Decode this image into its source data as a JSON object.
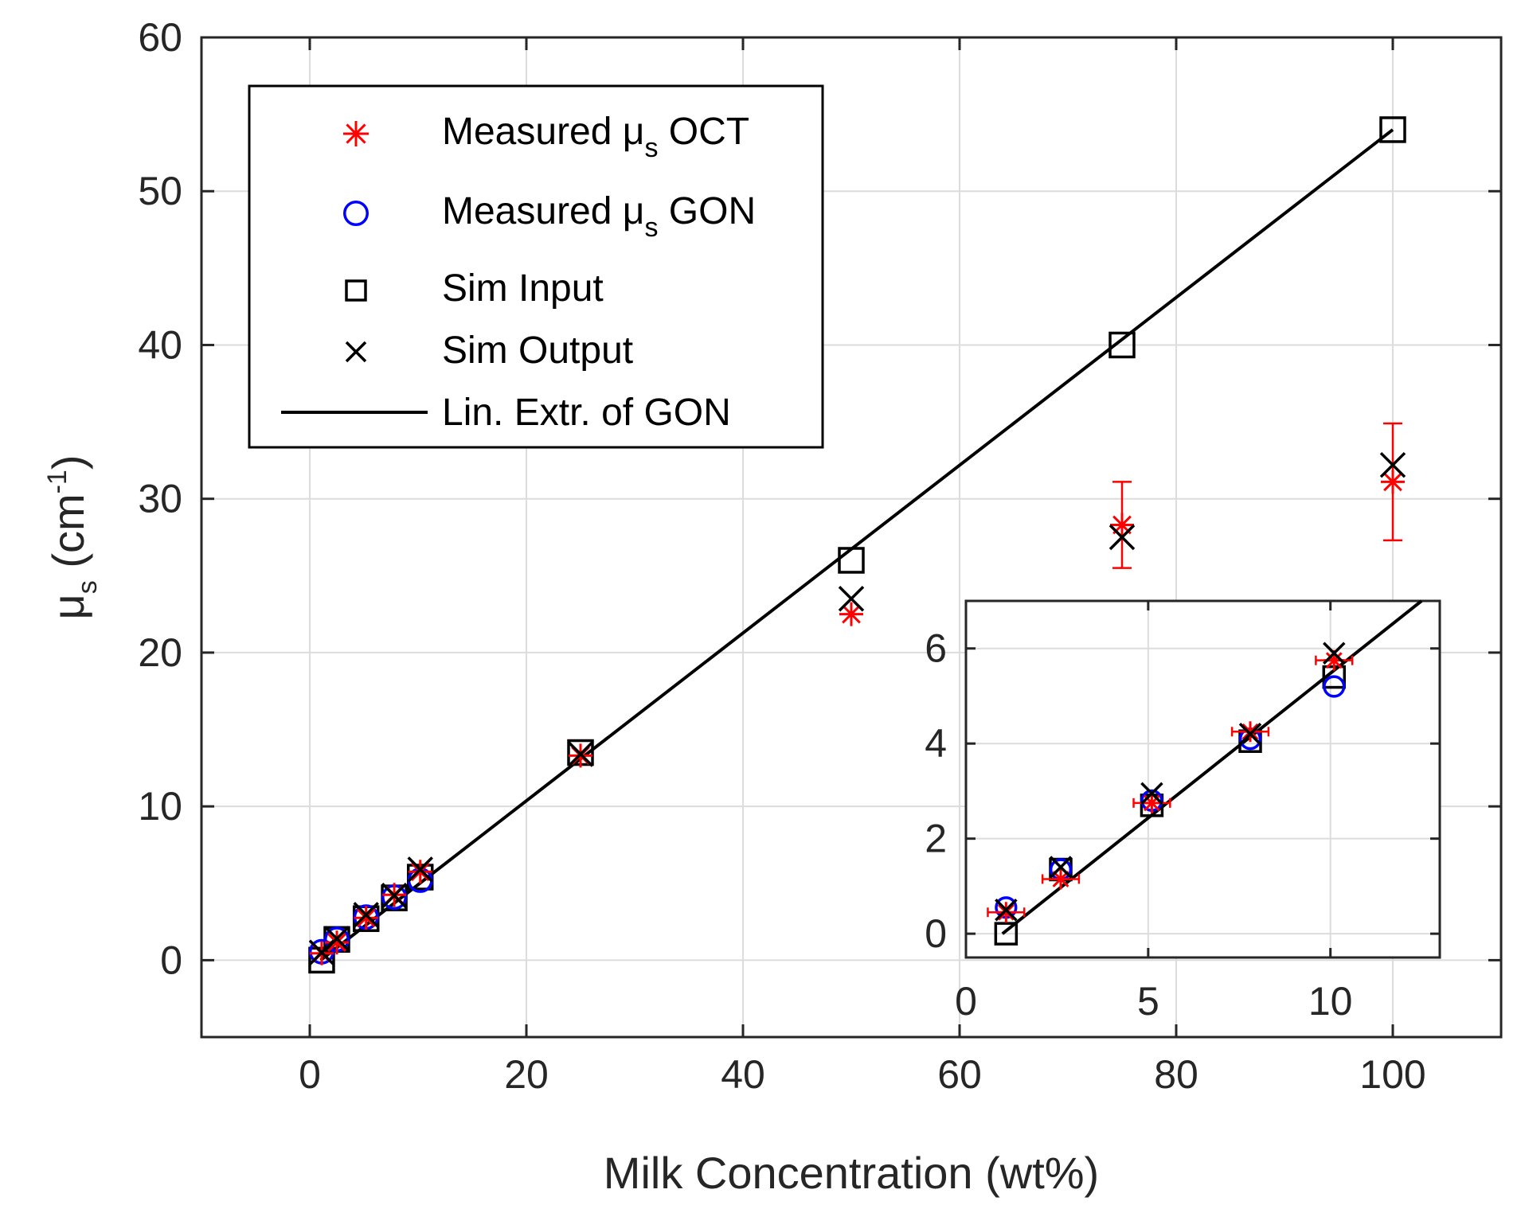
{
  "chart_data": [
    {
      "type": "scatter",
      "role": "main",
      "xlabel": "Milk Concentration (wt%)",
      "ylabel": {
        "base": "μ",
        "sub": "s",
        "unit_open": " (cm",
        "unit_sup": "-1",
        "unit_close": ")"
      },
      "xlim": [
        -10,
        110
      ],
      "ylim": [
        -5,
        60
      ],
      "xticks": [
        "0",
        "20",
        "40",
        "60",
        "80",
        "100"
      ],
      "xtick_values": [
        0,
        20,
        40,
        60,
        80,
        100
      ],
      "yticks": [
        "0",
        "10",
        "20",
        "30",
        "40",
        "50",
        "60"
      ],
      "ytick_values": [
        0,
        10,
        20,
        30,
        40,
        50,
        60
      ],
      "grid": true,
      "legend": {
        "placement": "top-left",
        "entries": [
          {
            "key": "oct",
            "text": "Measured μ",
            "sub": "s",
            "suffix": " OCT"
          },
          {
            "key": "gon",
            "text": "Measured μ",
            "sub": "s",
            "suffix": " GON"
          },
          {
            "key": "simin",
            "text": "Sim Input",
            "sub": "",
            "suffix": ""
          },
          {
            "key": "simout",
            "text": "Sim Output",
            "sub": "",
            "suffix": ""
          },
          {
            "key": "fit",
            "text": "Lin. Extr. of GON",
            "sub": "",
            "suffix": ""
          }
        ]
      },
      "series": [
        {
          "name": "Measured μs OCT",
          "marker": "asterisk",
          "color": "#ff0000",
          "x": [
            1.1,
            2.5,
            5.2,
            7.8,
            10.2,
            25,
            50,
            75,
            100
          ],
          "y": [
            0.45,
            1.15,
            2.75,
            4.25,
            5.75,
            13.3,
            22.5,
            28.3,
            31.1
          ],
          "yerr": [
            0,
            0,
            0,
            0,
            0,
            0,
            0,
            2.8,
            3.8
          ]
        },
        {
          "name": "Measured μs GON",
          "marker": "circle",
          "color": "#0000ff",
          "x": [
            1.1,
            2.5,
            5.2,
            7.8,
            10.2
          ],
          "y": [
            0.55,
            1.35,
            2.8,
            4.1,
            5.2
          ]
        },
        {
          "name": "Sim Input",
          "marker": "square",
          "color": "#000000",
          "x": [
            1.1,
            2.5,
            5.2,
            7.8,
            10.2,
            25,
            50,
            75,
            100
          ],
          "y": [
            0,
            1.35,
            2.7,
            4.05,
            5.4,
            13.5,
            26,
            40,
            54
          ]
        },
        {
          "name": "Sim Output",
          "marker": "x",
          "color": "#000000",
          "x": [
            1.1,
            2.5,
            5.2,
            7.8,
            10.2,
            25,
            50,
            75,
            100
          ],
          "y": [
            0.5,
            1.4,
            2.95,
            4.2,
            5.9,
            13.4,
            23.5,
            27.5,
            32.2
          ]
        },
        {
          "name": "Lin. Extr. of GON",
          "type": "line",
          "color": "#000000",
          "x": [
            1.0,
            100
          ],
          "y": [
            0.0,
            54.0
          ]
        }
      ]
    },
    {
      "type": "scatter",
      "role": "inset",
      "placement": "bottom-right",
      "xlim": [
        0,
        13
      ],
      "ylim": [
        -0.5,
        7
      ],
      "xticks": [
        "0",
        "5",
        "10"
      ],
      "xtick_values": [
        0,
        5,
        10
      ],
      "yticks": [
        "0",
        "2",
        "4",
        "6"
      ],
      "ytick_values": [
        0,
        2,
        4,
        6
      ],
      "grid": true,
      "series": [
        {
          "name": "Measured μs OCT",
          "marker": "asterisk",
          "color": "#ff0000",
          "x": [
            1.1,
            2.6,
            5.1,
            7.8,
            10.1
          ],
          "y": [
            0.45,
            1.15,
            2.75,
            4.25,
            5.75
          ],
          "xerr": [
            0.5,
            0.5,
            0.5,
            0.5,
            0.5
          ]
        },
        {
          "name": "Measured μs GON",
          "marker": "circle",
          "color": "#0000ff",
          "x": [
            1.1,
            2.6,
            5.1,
            7.8,
            10.1
          ],
          "y": [
            0.55,
            1.35,
            2.8,
            4.1,
            5.2
          ]
        },
        {
          "name": "Sim Input",
          "marker": "square",
          "color": "#000000",
          "x": [
            1.1,
            2.6,
            5.1,
            7.8,
            10.1
          ],
          "y": [
            0,
            1.35,
            2.7,
            4.05,
            5.4
          ]
        },
        {
          "name": "Sim Output",
          "marker": "x",
          "color": "#000000",
          "x": [
            1.1,
            2.6,
            5.1,
            7.8,
            10.1
          ],
          "y": [
            0.5,
            1.4,
            2.95,
            4.2,
            5.9
          ]
        },
        {
          "name": "Lin. Extr. of GON",
          "type": "line",
          "color": "#000000",
          "x": [
            1.0,
            12.5
          ],
          "y": [
            0.0,
            7.0
          ]
        }
      ]
    }
  ]
}
